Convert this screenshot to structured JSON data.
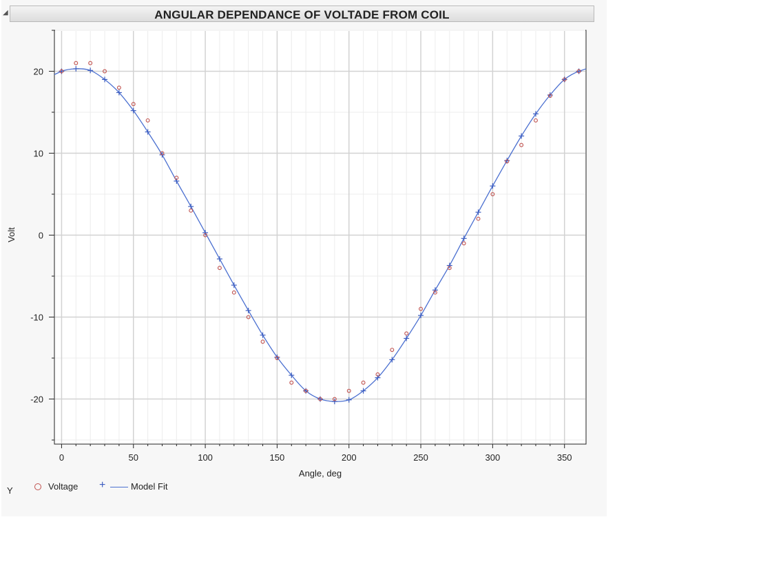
{
  "window": {
    "title": "ANGULAR  DEPENDANCE  OF VOLTADE  FROM COIL"
  },
  "legend": {
    "group_label": "Y",
    "items": [
      {
        "label": "Voltage",
        "marker": "circle",
        "color": "#c0504d"
      },
      {
        "label": "Model Fit",
        "marker": "plus-line",
        "color": "#3a5bbf"
      }
    ]
  },
  "chart_data": {
    "type": "scatter",
    "title": "ANGULAR  DEPENDANCE  OF VOLTADE  FROM COIL",
    "xlabel": "Angle, deg",
    "ylabel": "Volt",
    "xlim": [
      -5,
      365
    ],
    "ylim": [
      -25.5,
      25
    ],
    "xticks": [
      0,
      50,
      100,
      150,
      200,
      250,
      300,
      350
    ],
    "yticks": [
      -20,
      -10,
      0,
      10,
      20
    ],
    "grid": true,
    "legend_position": "bottom-left",
    "series": [
      {
        "name": "Voltage",
        "marker": "circle",
        "color": "#c0504d",
        "x": [
          0,
          10,
          20,
          30,
          40,
          50,
          60,
          70,
          80,
          90,
          100,
          110,
          120,
          130,
          140,
          150,
          160,
          170,
          180,
          190,
          200,
          210,
          220,
          230,
          240,
          250,
          260,
          270,
          280,
          290,
          300,
          310,
          320,
          330,
          340,
          350,
          360
        ],
        "y": [
          20,
          21,
          21,
          20,
          18,
          16,
          14,
          10,
          7,
          3,
          0,
          -4,
          -7,
          -10,
          -13,
          -15,
          -18,
          -19,
          -20,
          -20,
          -19,
          -18,
          -17,
          -14,
          -12,
          -9,
          -7,
          -4,
          -1,
          2,
          5,
          9,
          11,
          14,
          17,
          19,
          20
        ]
      },
      {
        "name": "Model Fit",
        "marker": "plus",
        "color": "#3a5bbf",
        "line": true,
        "x": [
          0,
          10,
          20,
          30,
          40,
          50,
          60,
          70,
          80,
          90,
          100,
          110,
          120,
          130,
          140,
          150,
          160,
          170,
          180,
          190,
          200,
          210,
          220,
          230,
          240,
          250,
          260,
          270,
          280,
          290,
          300,
          310,
          320,
          330,
          340,
          350,
          360
        ],
        "y": [
          20,
          20.3,
          20.1,
          19.0,
          17.4,
          15.2,
          12.6,
          9.8,
          6.6,
          3.5,
          0.3,
          -2.9,
          -6.1,
          -9.2,
          -12.2,
          -14.9,
          -17.1,
          -19.0,
          -20.0,
          -20.3,
          -20.1,
          -19.0,
          -17.4,
          -15.2,
          -12.6,
          -9.8,
          -6.7,
          -3.7,
          -0.4,
          2.8,
          6.0,
          9.1,
          12.1,
          14.8,
          17.1,
          19.0,
          20.0
        ]
      }
    ]
  }
}
